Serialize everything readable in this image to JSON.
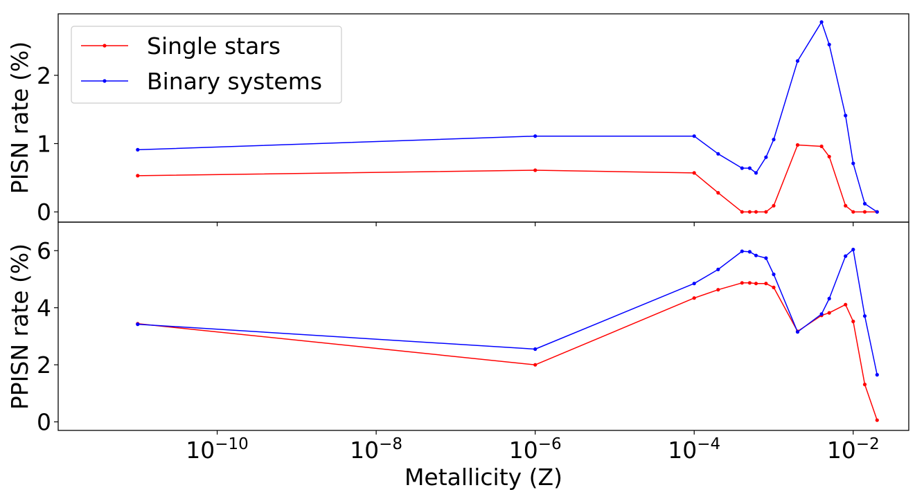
{
  "chart_data": [
    {
      "type": "line",
      "ylabel": "PISN rate (%)",
      "xscale": "log",
      "xlim": [
        1e-12,
        0.05
      ],
      "ylim": [
        -0.15,
        2.9
      ],
      "yticks": [
        0,
        1,
        2
      ],
      "ytick_labels": [
        "0",
        "1",
        "2"
      ],
      "grid": false,
      "legend": "top-left",
      "x": [
        1e-11,
        1e-06,
        0.0001,
        0.0002,
        0.0004,
        0.0005,
        0.0006,
        0.0008,
        0.001,
        0.002,
        0.004,
        0.005,
        0.008,
        0.01,
        0.014,
        0.02
      ],
      "series": [
        {
          "name": "Single stars",
          "color": "#ff0000",
          "values": [
            0.53,
            0.61,
            0.57,
            0.28,
            0.0,
            0.0,
            0.0,
            0.0,
            0.09,
            0.98,
            0.96,
            0.81,
            0.09,
            0.0,
            0.0,
            0.0
          ]
        },
        {
          "name": "Binary systems",
          "color": "#0000ff",
          "values": [
            0.91,
            1.11,
            1.11,
            0.85,
            0.64,
            0.64,
            0.57,
            0.8,
            1.06,
            2.21,
            2.78,
            2.45,
            1.41,
            0.71,
            0.12,
            0.0
          ]
        }
      ]
    },
    {
      "type": "line",
      "ylabel": "PPISN rate (%)",
      "xlabel": "Metallicity (Z)",
      "xscale": "log",
      "xlim": [
        1e-12,
        0.05
      ],
      "ylim": [
        -0.3,
        7.0
      ],
      "yticks": [
        0,
        2,
        4,
        6
      ],
      "ytick_labels": [
        "0",
        "2",
        "4",
        "6"
      ],
      "xticks": [
        1e-10,
        1e-08,
        1e-06,
        0.0001,
        0.01
      ],
      "xtick_labels": [
        {
          "base": "10",
          "exp": "−10"
        },
        {
          "base": "10",
          "exp": "−8"
        },
        {
          "base": "10",
          "exp": "−6"
        },
        {
          "base": "10",
          "exp": "−4"
        },
        {
          "base": "10",
          "exp": "−2"
        }
      ],
      "grid": false,
      "x": [
        1e-11,
        1e-06,
        0.0001,
        0.0002,
        0.0004,
        0.0005,
        0.0006,
        0.0008,
        0.001,
        0.002,
        0.004,
        0.005,
        0.008,
        0.01,
        0.014,
        0.02
      ],
      "series": [
        {
          "name": "Single stars",
          "color": "#ff0000",
          "values": [
            3.44,
            2.0,
            4.34,
            4.63,
            4.87,
            4.87,
            4.85,
            4.85,
            4.71,
            3.17,
            3.73,
            3.82,
            4.11,
            3.52,
            1.31,
            0.06
          ]
        },
        {
          "name": "Binary systems",
          "color": "#0000ff",
          "values": [
            3.42,
            2.55,
            4.85,
            5.34,
            5.98,
            5.96,
            5.83,
            5.74,
            5.17,
            3.15,
            3.78,
            4.32,
            5.81,
            6.04,
            3.71,
            1.65
          ]
        }
      ]
    }
  ]
}
